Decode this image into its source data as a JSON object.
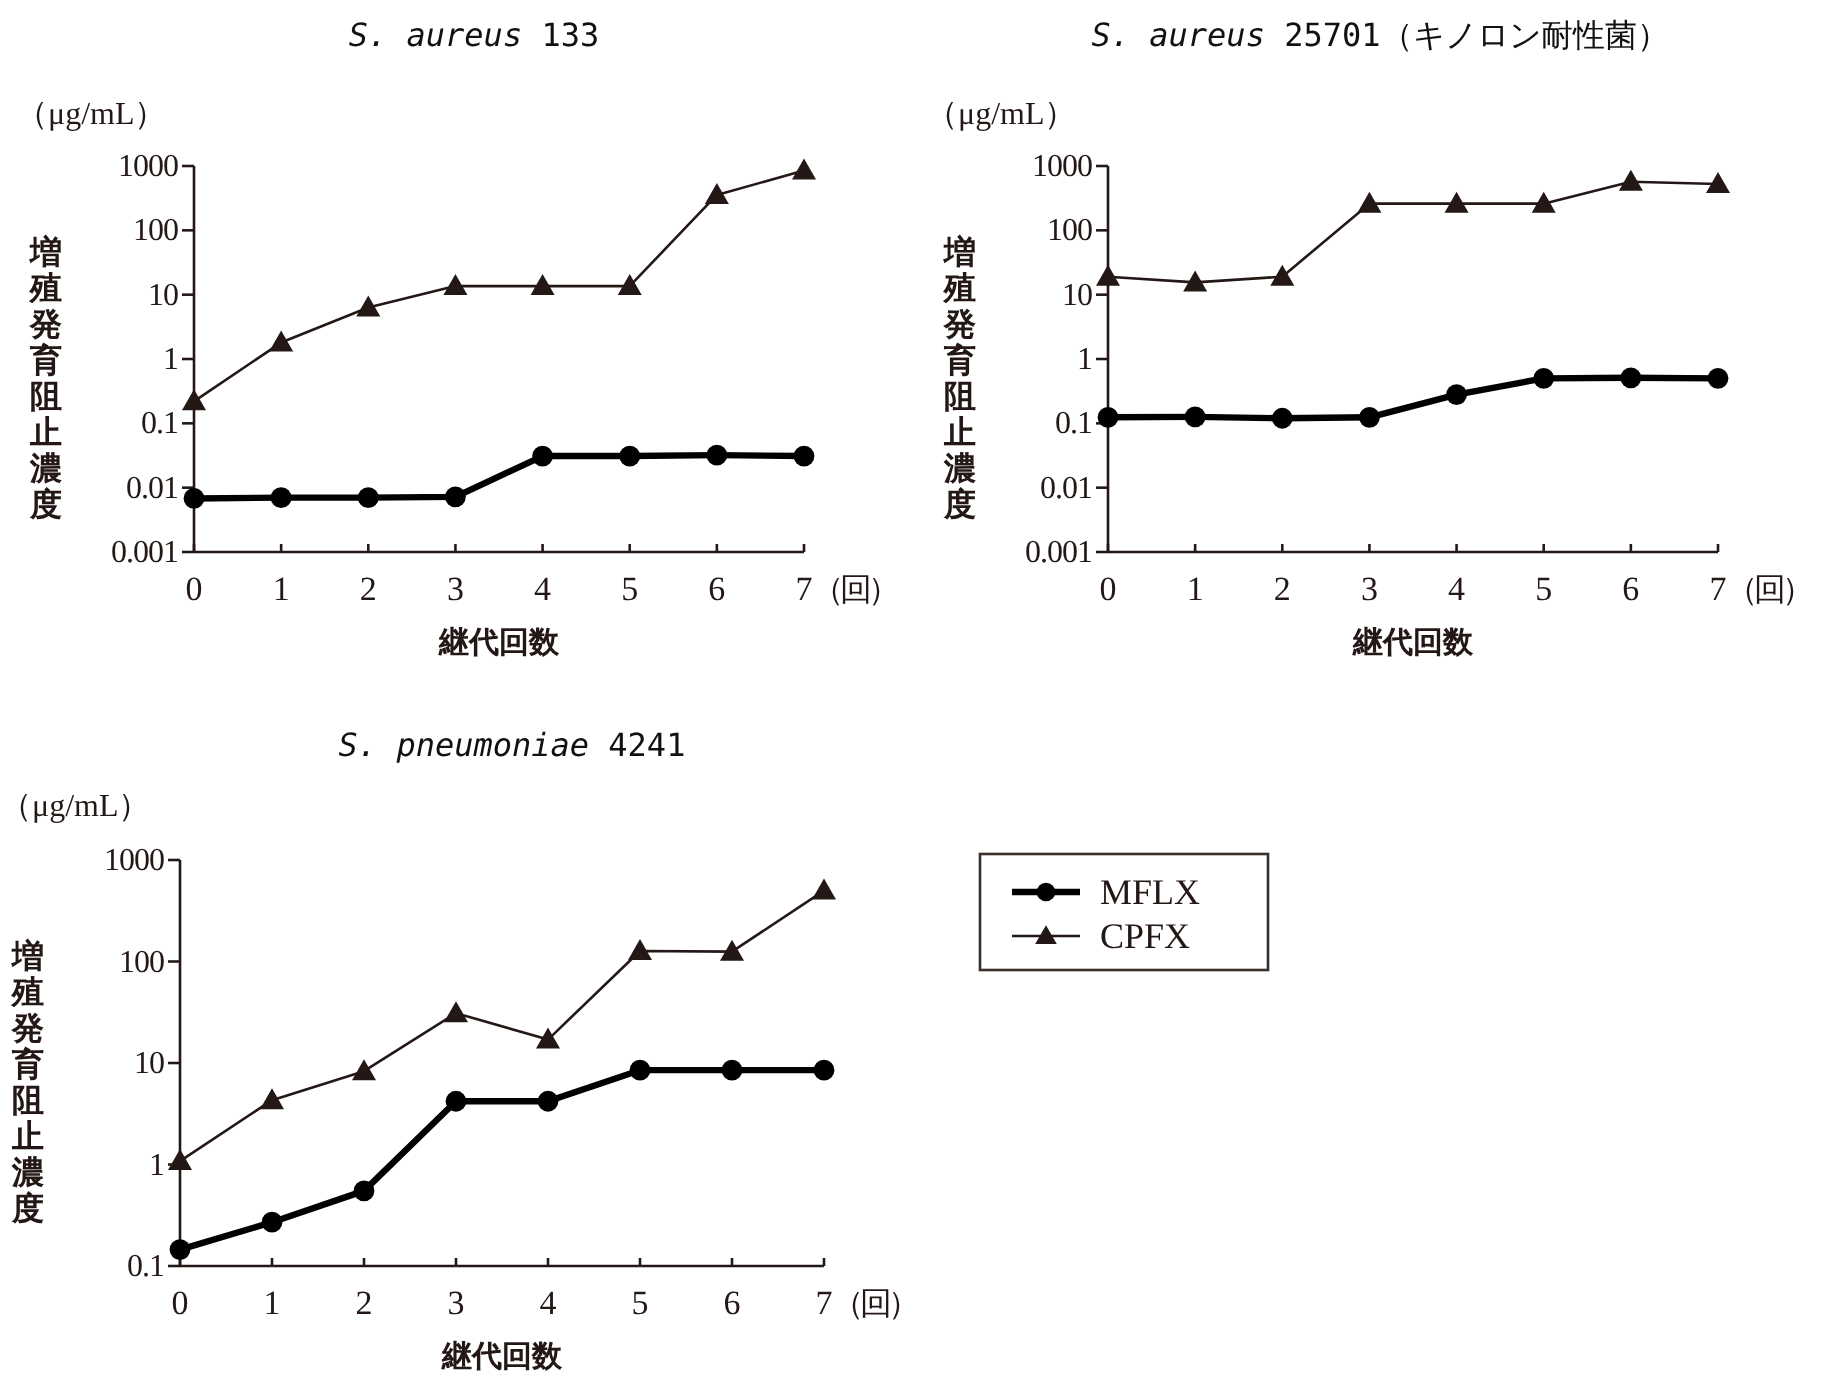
{
  "chart_data": [
    {
      "type": "line",
      "title": "S. aureus 133",
      "xlabel": "継代回数",
      "ylabel": "増殖発育阻止濃度",
      "annotations": [
        "（μg/mL）",
        "（回）"
      ],
      "log": "y",
      "x": [
        0,
        1,
        2,
        3,
        4,
        5,
        6,
        7
      ],
      "xlim": [
        0,
        7
      ],
      "xticks": [
        0,
        1,
        2,
        3,
        4,
        5,
        6,
        7
      ],
      "ylim": [
        0.001,
        1000
      ],
      "yticks": [
        0.001,
        0.01,
        0.1,
        1,
        10,
        100,
        1000
      ],
      "series": [
        {
          "color": "#000000",
          "marker": "circle",
          "values": [
            0.0068,
            0.007,
            0.007,
            0.0072,
            0.031,
            0.031,
            0.032,
            0.031
          ]
        },
        {
          "color": "#231815",
          "marker": "triangle",
          "values": [
            0.22,
            1.8,
            6.3,
            13.6,
            13.6,
            13.6,
            355,
            850
          ]
        }
      ]
    },
    {
      "type": "line",
      "title": "S. aureus 25701（キノロン耐性菌）",
      "xlabel": "継代回数",
      "ylabel": "増殖発育阻止濃度",
      "annotations": [
        "（μg/mL）",
        "（回）"
      ],
      "log": "y",
      "x": [
        0,
        1,
        2,
        3,
        4,
        5,
        6,
        7
      ],
      "xlim": [
        0,
        7
      ],
      "xticks": [
        0,
        1,
        2,
        3,
        4,
        5,
        6,
        7
      ],
      "ylim": [
        0.001,
        1000
      ],
      "yticks": [
        0.001,
        0.01,
        0.1,
        1,
        10,
        100,
        1000
      ],
      "series": [
        {
          "color": "#000000",
          "marker": "circle",
          "values": [
            0.124,
            0.126,
            0.12,
            0.124,
            0.28,
            0.5,
            0.51,
            0.5
          ]
        },
        {
          "color": "#231815",
          "marker": "triangle",
          "values": [
            19,
            15.5,
            19,
            260,
            260,
            260,
            570,
            525
          ]
        }
      ]
    },
    {
      "type": "line",
      "title": "S. pneumoniae 4241",
      "xlabel": "継代回数",
      "ylabel": "増殖発育阻止濃度",
      "annotations": [
        "（μg/mL）",
        "（回）"
      ],
      "log": "y",
      "x": [
        0,
        1,
        2,
        3,
        4,
        5,
        6,
        7
      ],
      "xlim": [
        0,
        7
      ],
      "xticks": [
        0,
        1,
        2,
        3,
        4,
        5,
        6,
        7
      ],
      "ylim": [
        0.1,
        1000
      ],
      "yticks": [
        0.1,
        1,
        10,
        100,
        1000
      ],
      "legend": "right",
      "series": [
        {
          "name": "MFLX",
          "color": "#000000",
          "marker": "circle",
          "values": [
            0.145,
            0.27,
            0.55,
            4.2,
            4.2,
            8.5,
            8.5,
            8.5
          ]
        },
        {
          "name": "CPFX",
          "color": "#231815",
          "marker": "triangle",
          "values": [
            1.08,
            4.3,
            8.3,
            31,
            17,
            127,
            125,
            500
          ]
        }
      ]
    }
  ]
}
